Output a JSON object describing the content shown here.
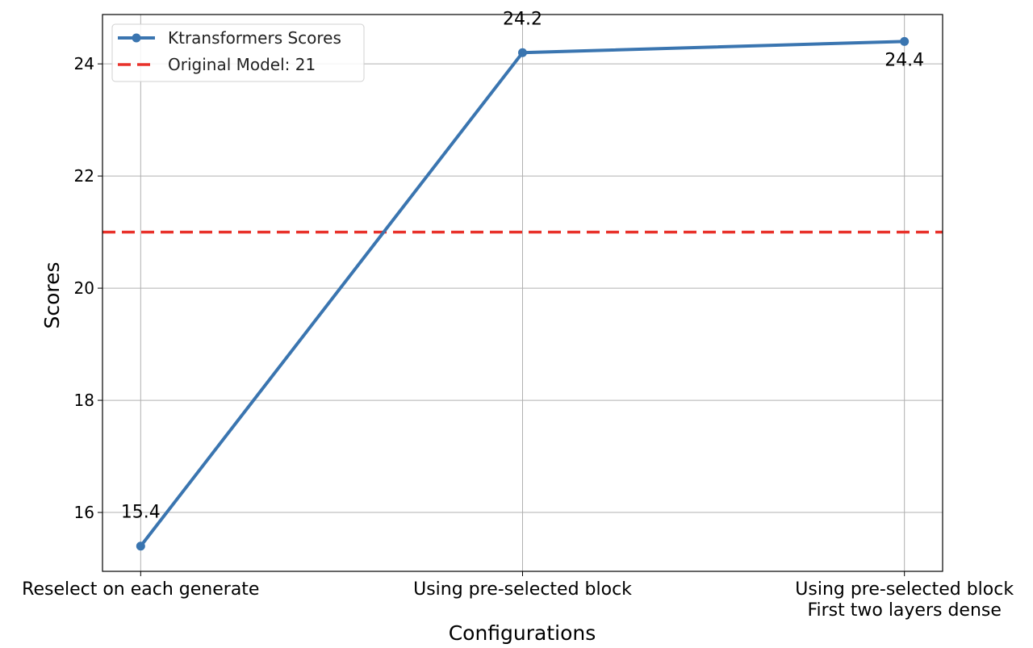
{
  "chart_data": {
    "type": "line",
    "title": "",
    "xlabel": "Configurations",
    "ylabel": "Scores",
    "categories": [
      [
        "Reselect on each generate"
      ],
      [
        "Using pre-selected block"
      ],
      [
        "Using pre-selected block",
        "First two layers dense"
      ]
    ],
    "series": [
      {
        "name": "Ktransformers Scores",
        "values": [
          15.4,
          24.2,
          24.4
        ],
        "color": "#3a75b0",
        "marker": "circle",
        "style": "solid"
      }
    ],
    "data_labels": [
      {
        "text": "15.4",
        "placement": "above"
      },
      {
        "text": "24.2",
        "placement": "above"
      },
      {
        "text": "24.4",
        "placement": "below"
      }
    ],
    "reference_lines": [
      {
        "name": "Original Model: 21",
        "value": 21,
        "color": "#e8312a",
        "style": "dashed"
      }
    ],
    "yticks": [
      16,
      18,
      20,
      22,
      24
    ],
    "ylim": [
      14.95,
      24.88
    ],
    "xlim": [
      -0.1,
      2.1
    ],
    "grid": true,
    "legend": "top-left"
  }
}
